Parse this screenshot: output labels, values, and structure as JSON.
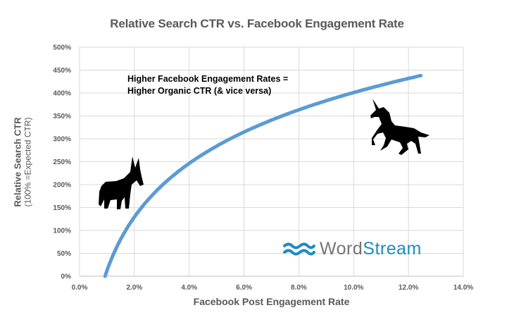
{
  "chart_data": {
    "type": "line",
    "title": "Relative Search CTR vs. Facebook Engagement Rate",
    "xlabel": "Facebook Post Engagement Rate",
    "ylabel": "Relative Search CTR",
    "ylabel_sub": "(100% =Expected CTR)",
    "xlim": [
      0,
      14
    ],
    "ylim": [
      0,
      500
    ],
    "x_ticks": [
      "0.0%",
      "2.0%",
      "4.0%",
      "6.0%",
      "8.0%",
      "10.0%",
      "12.0%",
      "14.0%"
    ],
    "y_ticks": [
      "0%",
      "50%",
      "100%",
      "150%",
      "200%",
      "250%",
      "300%",
      "350%",
      "400%",
      "450%",
      "500%"
    ],
    "grid": true,
    "legend": "none",
    "series": [
      {
        "name": "Relative Search CTR",
        "color": "#5b9bd5",
        "x": [
          0.93,
          1.0,
          1.5,
          2.0,
          3.0,
          4.0,
          5.0,
          6.0,
          7.0,
          8.0,
          9.0,
          10.0,
          11.0,
          12.0,
          12.45
        ],
        "y": [
          0,
          12,
          81,
          129,
          198,
          247,
          284,
          315,
          341,
          364,
          384,
          401,
          417,
          432,
          438
        ]
      }
    ],
    "annotations": [
      "Higher Facebook Engagement Rates =",
      "Higher Organic CTR (& vice versa)"
    ]
  },
  "logo": {
    "part1": "Word",
    "part2": "Stream"
  },
  "icons": {
    "donkey": "donkey-silhouette-icon",
    "unicorn": "unicorn-silhouette-icon",
    "logo_waves": "wave-logo-icon"
  }
}
